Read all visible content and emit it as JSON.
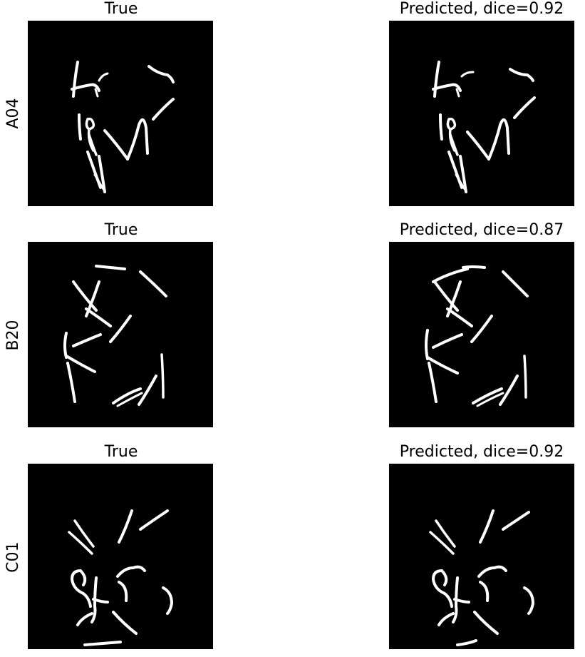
{
  "figure": {
    "rows": [
      {
        "label": "A04",
        "true_title": "True",
        "pred_title": "Predicted, dice=0.92",
        "dice": 0.92
      },
      {
        "label": "B20",
        "true_title": "True",
        "pred_title": "Predicted, dice=0.87",
        "dice": 0.87
      },
      {
        "label": "C01",
        "true_title": "True",
        "pred_title": "Predicted, dice=0.92",
        "dice": 0.92
      }
    ],
    "colors": {
      "background": "#000000",
      "mask": "#ffffff"
    }
  }
}
